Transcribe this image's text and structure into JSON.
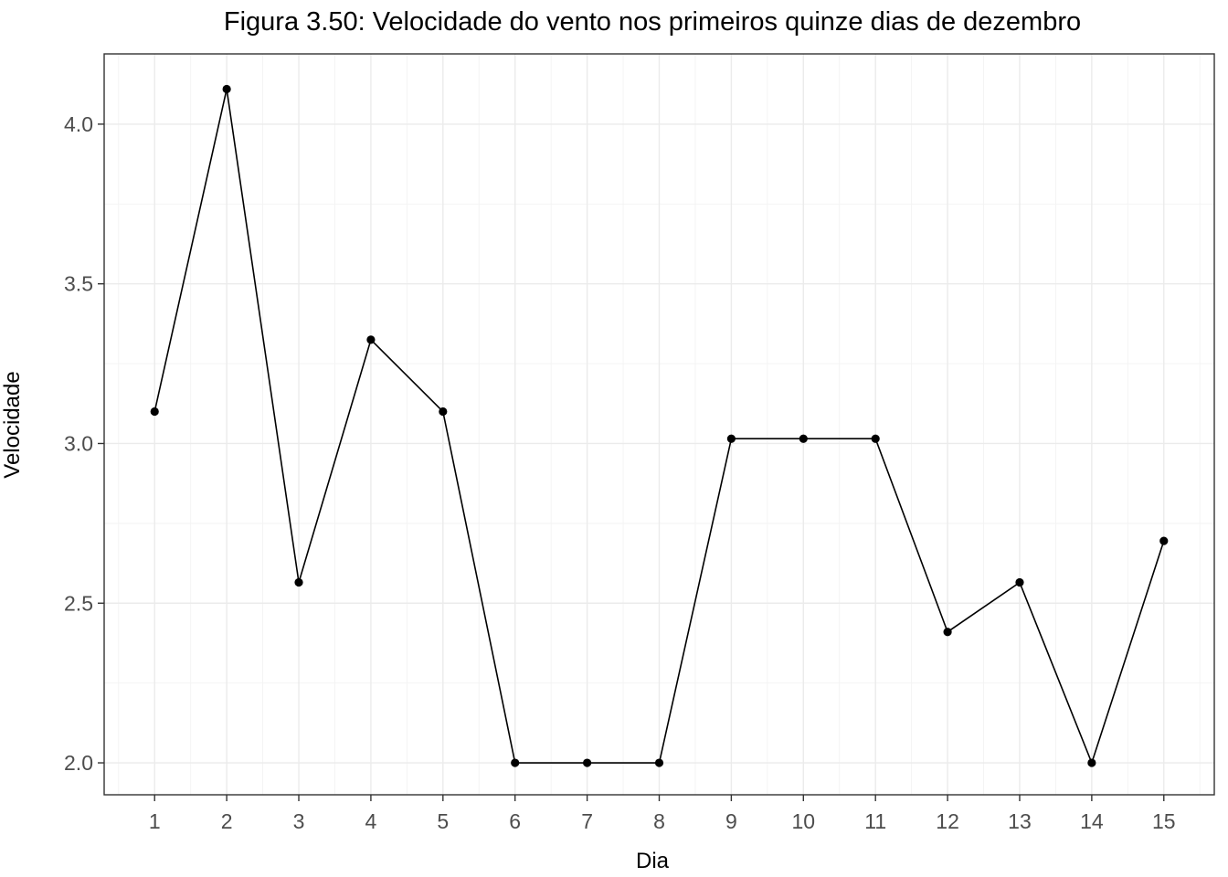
{
  "chart_data": {
    "type": "line",
    "title": "Figura 3.50: Velocidade do vento nos primeiros quinze dias de dezembro",
    "xlabel": "Dia",
    "ylabel": "Velocidade",
    "x": [
      1,
      2,
      3,
      4,
      5,
      6,
      7,
      8,
      9,
      10,
      11,
      12,
      13,
      14,
      15
    ],
    "x_tick_labels": [
      "1",
      "2",
      "3",
      "4",
      "5",
      "6",
      "7",
      "8",
      "9",
      "10",
      "11",
      "12",
      "13",
      "14",
      "15"
    ],
    "y": [
      3.1,
      4.11,
      2.565,
      3.325,
      3.1,
      2.0,
      2.0,
      2.0,
      3.015,
      3.015,
      3.015,
      2.41,
      2.565,
      2.0,
      2.695
    ],
    "y_ticks": [
      2.0,
      2.5,
      3.0,
      3.5,
      4.0
    ],
    "y_tick_labels": [
      "2.0",
      "2.5",
      "3.0",
      "3.5",
      "4.0"
    ],
    "xlim": [
      0.3,
      15.7
    ],
    "ylim": [
      1.9,
      4.22
    ],
    "grid": true,
    "legend": "none",
    "colors": {
      "line": "#000000",
      "points": "#000000",
      "grid_major": "#ebebeb",
      "grid_minor": "#f3f3f3",
      "border": "#333333"
    }
  }
}
